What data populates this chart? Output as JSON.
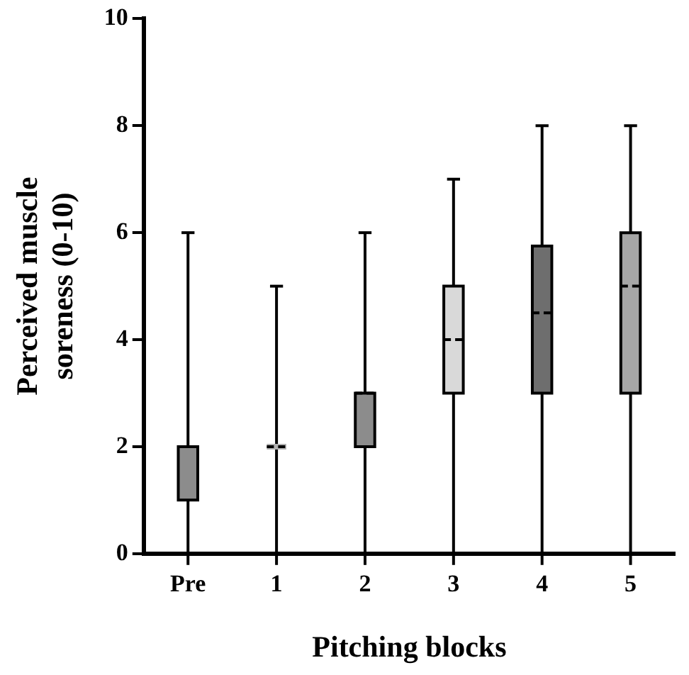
{
  "chart_data": {
    "type": "box",
    "xlabel": "Pitching blocks",
    "ylabel": "Perceived muscle soreness (0-10)",
    "categories": [
      "Pre",
      "1",
      "2",
      "3",
      "4",
      "5"
    ],
    "boxes": [
      {
        "low": 0,
        "q1": 1,
        "median": 2,
        "q3": 2,
        "high": 6
      },
      {
        "low": 0,
        "q1": 2,
        "median": 2,
        "q3": 2,
        "high": 5
      },
      {
        "low": 0,
        "q1": 2,
        "median": 3,
        "q3": 3,
        "high": 6
      },
      {
        "low": 0,
        "q1": 3,
        "median": 4,
        "q3": 5,
        "high": 7
      },
      {
        "low": 0,
        "q1": 3,
        "median": 4.5,
        "q3": 5.75,
        "high": 8
      },
      {
        "low": 0,
        "q1": 3,
        "median": 5,
        "q3": 6,
        "high": 8
      }
    ],
    "colors": [
      "#8c8c8c",
      "#b0b0b0",
      "#8c8c8c",
      "#d9d9d9",
      "#6e6e6e",
      "#a6a6a6"
    ],
    "ylim": [
      0,
      10
    ],
    "yticks": [
      0,
      2,
      4,
      6,
      8,
      10
    ],
    "grid": false,
    "legend": false
  }
}
